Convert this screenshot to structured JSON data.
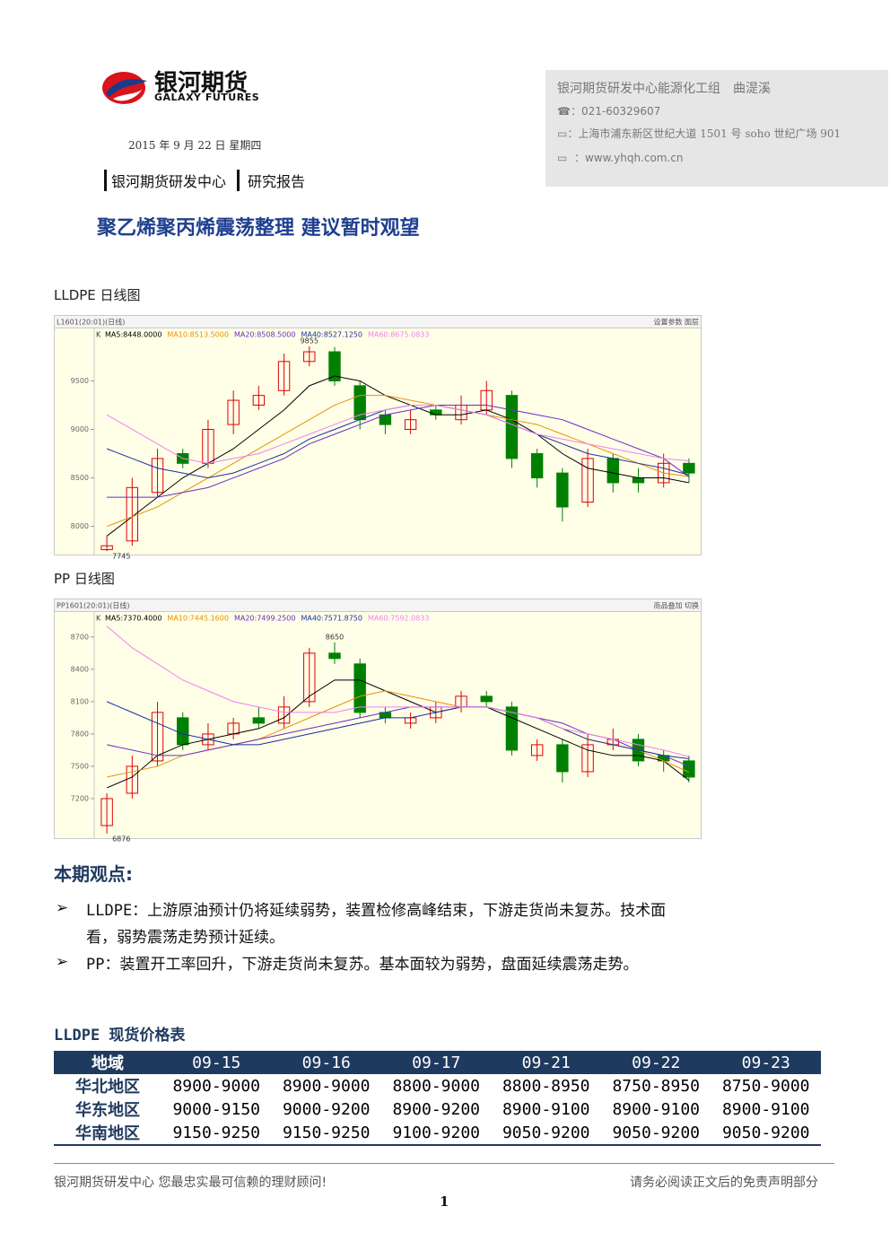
{
  "header": {
    "logo_cn": "银河期货",
    "logo_en": "GALAXY FUTURES",
    "date": "2015 年 9 月 22 日 星期四",
    "dept": "银河期货研发中心",
    "report_type": "研究报告",
    "title": "聚乙烯聚丙烯震荡整理 建议暂时观望"
  },
  "contact": {
    "team": "银河期货研发中心能源化工组　曲湜溪",
    "phone": "：021-60329607",
    "address": "：上海市浦东新区世纪大道 1501 号 soho 世纪广场 901",
    "website": "：www.yhqh.com.cn"
  },
  "chart_data": [
    {
      "type": "candlestick",
      "title": "LLDPE 日线图",
      "header_left": "L1601(20:01)(日线)",
      "header_right": "设置参数 图层",
      "k_label": "K",
      "open": [
        7760,
        7850,
        8350,
        8750,
        8650,
        9050,
        9250,
        9400,
        9700,
        9800,
        9450,
        9150,
        9000,
        9200,
        9100,
        9200,
        9350,
        8750,
        8550,
        8250,
        8700,
        8500,
        8450,
        8650
      ],
      "high": [
        7900,
        8500,
        8800,
        8800,
        9100,
        9400,
        9450,
        9780,
        9855,
        9850,
        9500,
        9200,
        9200,
        9250,
        9350,
        9500,
        9400,
        8800,
        8600,
        8800,
        8750,
        8600,
        8750,
        8700
      ],
      "low": [
        7745,
        7800,
        8300,
        8600,
        8600,
        8950,
        9200,
        9350,
        9650,
        9450,
        9000,
        8950,
        8950,
        9100,
        9050,
        9150,
        8600,
        8400,
        8050,
        8200,
        8350,
        8350,
        8400,
        8450
      ],
      "close": [
        7800,
        8400,
        8700,
        8650,
        9000,
        9300,
        9350,
        9700,
        9800,
        9500,
        9100,
        9050,
        9100,
        9150,
        9250,
        9400,
        8700,
        8500,
        8200,
        8700,
        8450,
        8450,
        8650,
        8550
      ],
      "up_color": "#e00000",
      "down_color": "#008000",
      "series": [
        {
          "name": "MA5:8448.0000",
          "color": "#000000",
          "values": [
            7900,
            8100,
            8300,
            8500,
            8650,
            8800,
            9000,
            9200,
            9450,
            9550,
            9500,
            9350,
            9250,
            9150,
            9150,
            9200,
            9100,
            8950,
            8750,
            8600,
            8550,
            8500,
            8500,
            8450
          ]
        },
        {
          "name": "MA10:8513.5000",
          "color": "#e89000",
          "values": [
            8000,
            8100,
            8200,
            8350,
            8500,
            8650,
            8800,
            8950,
            9100,
            9250,
            9350,
            9350,
            9300,
            9250,
            9200,
            9150,
            9100,
            9050,
            8950,
            8850,
            8750,
            8650,
            8550,
            8515
          ]
        },
        {
          "name": "MA20:8508.5000",
          "color": "#6a2fc0",
          "values": [
            8300,
            8300,
            8300,
            8350,
            8400,
            8500,
            8600,
            8700,
            8850,
            8950,
            9050,
            9150,
            9200,
            9250,
            9250,
            9250,
            9200,
            9150,
            9100,
            9000,
            8900,
            8800,
            8700,
            8510
          ]
        },
        {
          "name": "MA40:8527.1250",
          "color": "#1a2fa0",
          "values": [
            8800,
            8700,
            8600,
            8550,
            8500,
            8550,
            8650,
            8750,
            8900,
            9000,
            9100,
            9200,
            9250,
            9250,
            9200,
            9150,
            9050,
            8950,
            8850,
            8750,
            8700,
            8650,
            8600,
            8530
          ]
        },
        {
          "name": "MA60:8675.0833",
          "color": "#f080f0",
          "values": [
            9150,
            9000,
            8850,
            8700,
            8650,
            8700,
            8750,
            8850,
            8950,
            9050,
            9150,
            9200,
            9250,
            9250,
            9200,
            9150,
            9050,
            8950,
            8900,
            8850,
            8800,
            8750,
            8700,
            8675
          ]
        }
      ],
      "ylim": [
        7700,
        10050
      ],
      "yticks": [
        8000,
        8500,
        9000,
        9500
      ],
      "annotations": [
        9855,
        7745
      ]
    },
    {
      "type": "candlestick",
      "title": "PP 日线图",
      "header_left": "PP1601(20:01)(日线)",
      "header_right": "商品叠加 切换",
      "k_label": "K",
      "open": [
        6950,
        7250,
        7550,
        7950,
        7700,
        7800,
        7950,
        7900,
        8100,
        8550,
        8450,
        8000,
        7900,
        7950,
        8050,
        8150,
        8050,
        7600,
        7700,
        7450,
        7700,
        7750,
        7600,
        7550
      ],
      "high": [
        7250,
        7600,
        8100,
        8000,
        7900,
        7950,
        8050,
        8150,
        8600,
        8650,
        8500,
        8050,
        8000,
        8100,
        8200,
        8200,
        8100,
        7750,
        7750,
        7800,
        7850,
        7800,
        7650,
        7600
      ],
      "low": [
        6876,
        7200,
        7500,
        7650,
        7650,
        7750,
        7850,
        7850,
        8050,
        8450,
        7950,
        7900,
        7850,
        7900,
        8000,
        8050,
        7600,
        7550,
        7350,
        7400,
        7650,
        7500,
        7450,
        7350
      ],
      "close": [
        7200,
        7500,
        8000,
        7700,
        7800,
        7900,
        7900,
        8050,
        8550,
        8500,
        8000,
        7950,
        7950,
        8050,
        8150,
        8100,
        7650,
        7700,
        7450,
        7700,
        7750,
        7550,
        7550,
        7400
      ],
      "up_color": "#e00000",
      "down_color": "#008000",
      "series": [
        {
          "name": "MA5:7370.4000",
          "color": "#000000",
          "values": [
            7300,
            7400,
            7600,
            7700,
            7750,
            7800,
            7850,
            7950,
            8150,
            8300,
            8300,
            8200,
            8100,
            8000,
            8050,
            8050,
            7950,
            7850,
            7750,
            7650,
            7600,
            7600,
            7550,
            7370
          ]
        },
        {
          "name": "MA10:7445.1600",
          "color": "#e89000",
          "values": [
            7400,
            7450,
            7500,
            7600,
            7650,
            7700,
            7750,
            7850,
            7950,
            8050,
            8150,
            8200,
            8150,
            8100,
            8050,
            8050,
            8000,
            7950,
            7850,
            7750,
            7700,
            7650,
            7550,
            7445
          ]
        },
        {
          "name": "MA20:7499.2500",
          "color": "#6a2fc0",
          "values": [
            7700,
            7650,
            7600,
            7600,
            7650,
            7700,
            7750,
            7800,
            7850,
            7900,
            7950,
            8000,
            8050,
            8050,
            8050,
            8050,
            8000,
            7950,
            7900,
            7800,
            7750,
            7650,
            7600,
            7500
          ]
        },
        {
          "name": "MA40:7571.8750",
          "color": "#1a2fa0",
          "values": [
            8100,
            8000,
            7900,
            7800,
            7750,
            7700,
            7700,
            7750,
            7800,
            7850,
            7900,
            7950,
            7950,
            8000,
            8050,
            8050,
            8000,
            7950,
            7850,
            7750,
            7700,
            7650,
            7600,
            7570
          ]
        },
        {
          "name": "MA60:7592.0833",
          "color": "#f080f0",
          "values": [
            8800,
            8600,
            8450,
            8300,
            8200,
            8100,
            8050,
            8000,
            8000,
            8000,
            8050,
            8050,
            8050,
            8050,
            8050,
            8050,
            8000,
            7950,
            7850,
            7800,
            7750,
            7700,
            7650,
            7590
          ]
        }
      ],
      "ylim": [
        6825,
        8940
      ],
      "yticks": [
        7200,
        7500,
        7800,
        8100,
        8400,
        8700
      ],
      "annotations": [
        8650,
        6876
      ]
    }
  ],
  "views": {
    "heading": "本期观点:",
    "bullets": [
      "LLDPE：上游原油预计仍将延续弱势，装置检修高峰结束，下游走货尚未复苏。技术面看，弱势震荡走势预计延续。",
      "PP：装置开工率回升，下游走货尚未复苏。基本面较为弱势，盘面延续震荡走势。"
    ]
  },
  "table": {
    "title": "LLDPE 现货价格表",
    "header": [
      "地域",
      "09-15",
      "09-16",
      "09-17",
      "09-21",
      "09-22",
      "09-23"
    ],
    "rows": [
      [
        "华北地区",
        "8900-9000",
        "8900-9000",
        "8800-9000",
        "8800-8950",
        "8750-8950",
        "8750-9000"
      ],
      [
        "华东地区",
        "9000-9150",
        "9000-9200",
        "8900-9200",
        "8900-9100",
        "8900-9100",
        "8900-9100"
      ],
      [
        "华南地区",
        "9150-9250",
        "9150-9250",
        "9100-9200",
        "9050-9200",
        "9050-9200",
        "9050-9200"
      ]
    ]
  },
  "footer": {
    "left": "银河期货研发中心  您最忠实最可信赖的理财顾问!",
    "right": "请务必阅读正文后的免责声明部分",
    "page": "1"
  }
}
